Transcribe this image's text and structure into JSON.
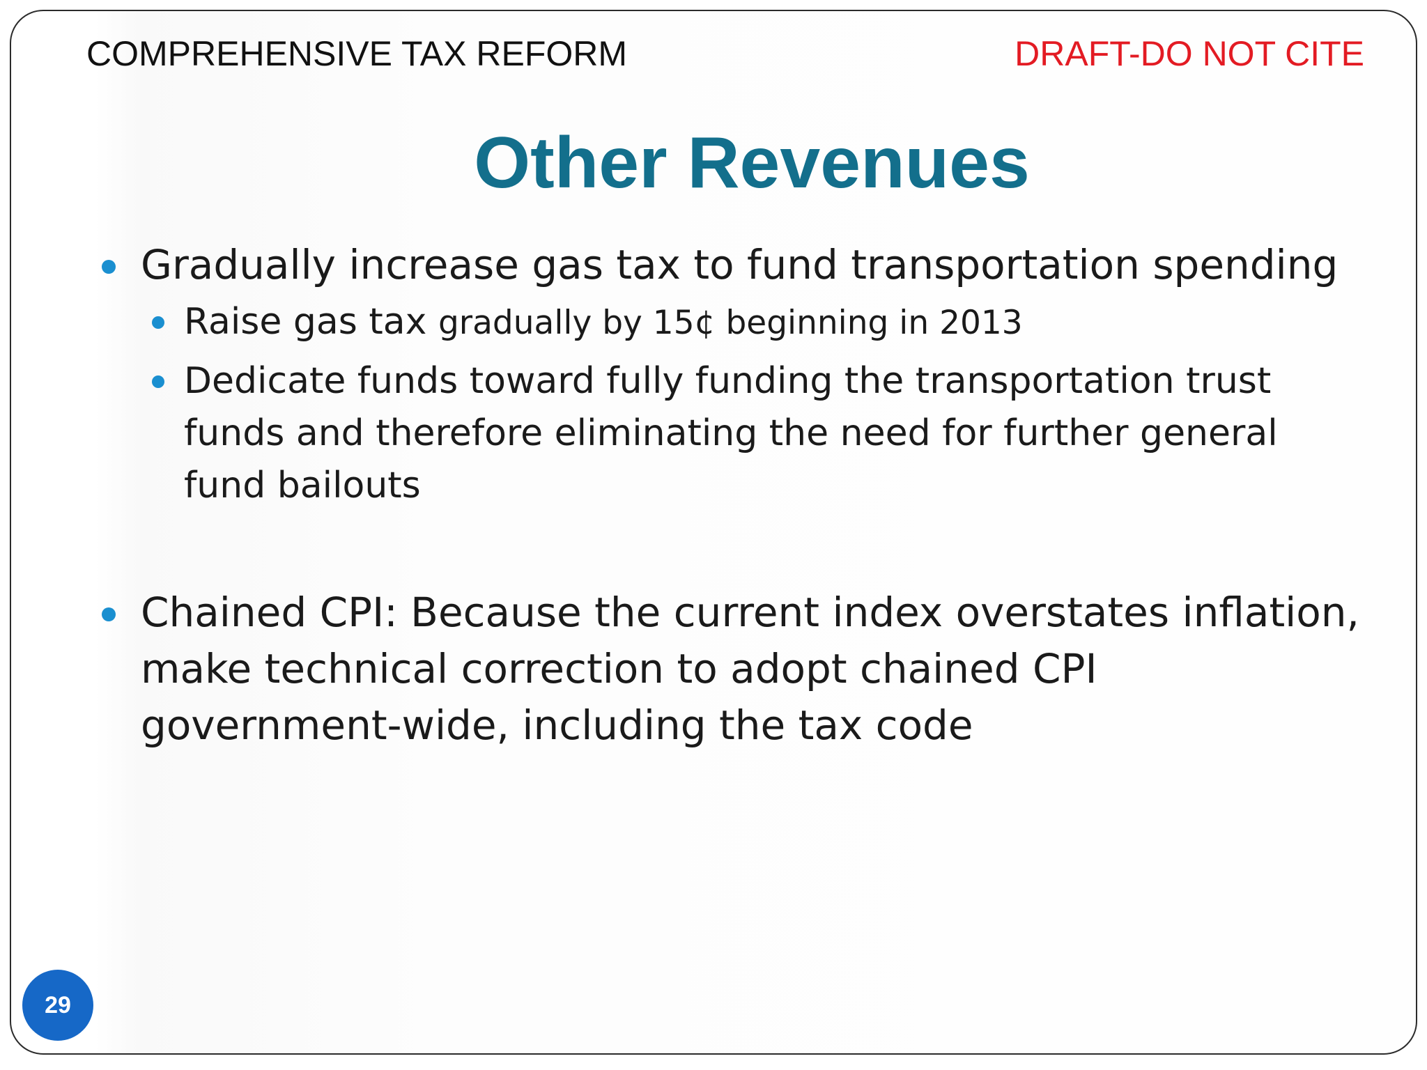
{
  "header": {
    "left_text": "COMPREHENSIVE TAX REFORM",
    "right_text": "DRAFT-DO NOT CITE"
  },
  "slide": {
    "title": "Other Revenues",
    "page_number": "29",
    "bullets": [
      {
        "text": "Gradually increase gas tax to fund transportation spending",
        "sub_bullets": [
          {
            "text_main": "Raise gas tax ",
            "text_small": "gradually by 15¢ beginning in 2013"
          },
          {
            "text": "Dedicate funds toward fully funding the transportation trust funds and therefore eliminating the need for further general fund bailouts"
          }
        ]
      },
      {
        "text": "Chained CPI: Because the current index overstates inflation, make technical correction to adopt chained CPI government-wide, including the tax code"
      }
    ]
  },
  "colors": {
    "title": "#136f8c",
    "draft_label": "#e31b23",
    "bullet": "#1a8fd0",
    "page_badge": "#1668c7"
  }
}
